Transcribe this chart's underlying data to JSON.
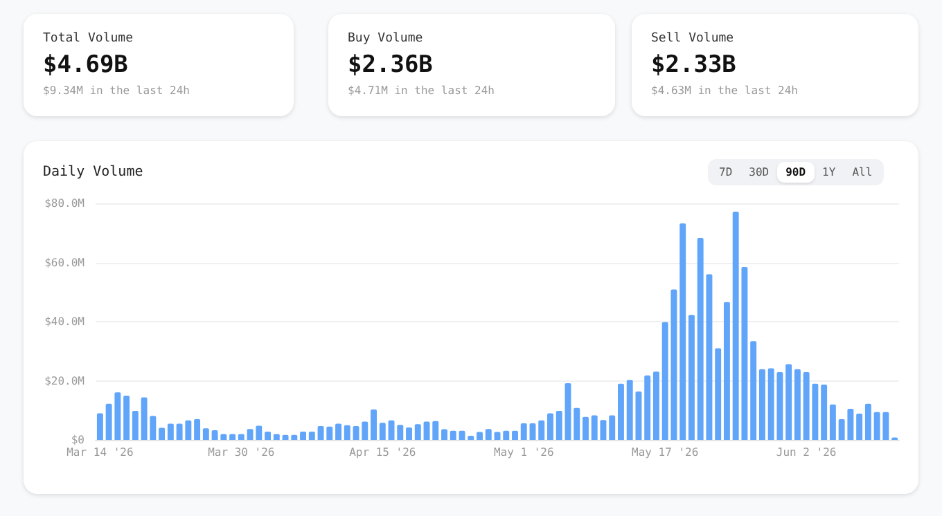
{
  "chart_data": [
    {
      "type": "other",
      "title": "Total Volume",
      "annotations": [
        "$4.69B",
        "$9.34M in the last 24h"
      ]
    },
    {
      "type": "other",
      "title": "Buy Volume",
      "annotations": [
        "$2.36B",
        "$4.71M in the last 24h"
      ]
    },
    {
      "type": "other",
      "title": "Sell Volume",
      "annotations": [
        "$2.33B",
        "$4.63M in the last 24h"
      ]
    },
    {
      "type": "bar",
      "title": "Daily Volume",
      "annotations": [
        "7D",
        "30D",
        "90D",
        "1Y",
        "All"
      ],
      "color": "#60a5fa",
      "grid": "y",
      "categories": [
        "Mar 14 '26",
        null,
        null,
        null,
        null,
        null,
        null,
        null,
        null,
        null,
        null,
        null,
        null,
        null,
        null,
        null,
        "Mar 30 '26",
        null,
        null,
        null,
        null,
        null,
        null,
        null,
        null,
        null,
        null,
        null,
        null,
        null,
        null,
        null,
        "Apr 15 '26",
        null,
        null,
        null,
        null,
        null,
        null,
        null,
        null,
        null,
        null,
        null,
        null,
        null,
        null,
        null,
        "May 1 '26",
        null,
        null,
        null,
        null,
        null,
        null,
        null,
        null,
        null,
        null,
        null,
        null,
        null,
        null,
        null,
        "May 17 '26",
        null,
        null,
        null,
        null,
        null,
        null,
        null,
        null,
        null,
        null,
        null,
        null,
        null,
        null,
        null,
        "Jun 2 '26",
        null,
        null,
        null,
        null,
        null,
        null,
        null,
        null,
        null,
        null
      ],
      "values": [
        9.0,
        12.2,
        16.1,
        15.0,
        9.8,
        14.4,
        8.1,
        4.1,
        5.5,
        5.5,
        6.6,
        7.0,
        3.9,
        3.3,
        2.0,
        2.0,
        2.0,
        3.7,
        4.8,
        2.8,
        2.0,
        1.7,
        1.7,
        2.8,
        2.8,
        4.7,
        4.5,
        5.5,
        5.0,
        4.7,
        6.2,
        10.3,
        5.8,
        6.6,
        5.1,
        4.2,
        5.3,
        6.2,
        6.4,
        3.6,
        3.1,
        3.1,
        1.4,
        2.7,
        3.7,
        2.7,
        3.1,
        3.1,
        5.6,
        5.6,
        6.6,
        9.0,
        9.8,
        19.2,
        10.8,
        7.8,
        8.3,
        6.7,
        8.3,
        19.0,
        20.3,
        16.4,
        21.8,
        23.1,
        39.8,
        50.9,
        73.2,
        42.3,
        68.3,
        56.0,
        31.0,
        46.6,
        77.2,
        58.5,
        33.4,
        23.9,
        24.2,
        22.9,
        25.6,
        23.9,
        22.9,
        19.0,
        18.7,
        12.0,
        7.0,
        10.5,
        8.9,
        12.2,
        9.4,
        9.4,
        0.8
      ],
      "ylim": [
        0,
        80
      ],
      "yticks": [
        {
          "value": 0,
          "label": "$0"
        },
        {
          "value": 20,
          "label": "$20.0M"
        },
        {
          "value": 40,
          "label": "$40.0M"
        },
        {
          "value": 60,
          "label": "$60.0M"
        },
        {
          "value": 80,
          "label": "$80.0M"
        }
      ]
    }
  ]
}
